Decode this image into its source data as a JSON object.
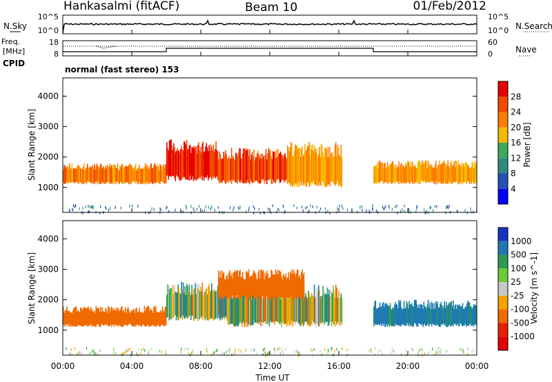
{
  "header": {
    "station": "Hankasalmi (fitACF)",
    "beam": "Beam 10",
    "date": "01/Feb/2012"
  },
  "top_panel": {
    "left_label": "N.Sky",
    "right_label": "N.Search",
    "left_ticks": [
      "10^5",
      "10^0"
    ],
    "right_ticks": [
      "10^5",
      "10^0"
    ]
  },
  "freq_panel": {
    "left_label_1": "Freq.",
    "left_label_2": "[MHz]",
    "left_ticks": [
      "18",
      "8"
    ],
    "right_ticks": [
      "60",
      "0"
    ],
    "right_label": "Nave"
  },
  "cpid": {
    "label": "CPID",
    "text": "normal (fast stereo) 153"
  },
  "x_axis": {
    "ticks": [
      "00:00",
      "04:00",
      "08:00",
      "12:00",
      "16:00",
      "20:00",
      "00:00"
    ],
    "label": "Time UT"
  },
  "colors": {
    "power": [
      "#0000ff",
      "#2550b4",
      "#2e8a7d",
      "#3aab5b",
      "#f6b800",
      "#ff7d00",
      "#f04b00",
      "#e80000"
    ],
    "velocity": [
      "#1633c4",
      "#1e7ab0",
      "#2a9a55",
      "#6cc93a",
      "#c8c8c8",
      "#f5a300",
      "#ef6a00",
      "#e62000",
      "#e80000"
    ]
  },
  "chart_data": [
    {
      "type": "heatmap",
      "title": "",
      "ylabel": "Slant Range [km]",
      "xlabel": "",
      "x_range": [
        "00:00",
        "24:00"
      ],
      "ylim": [
        180,
        4600
      ],
      "y_ticks": [
        1000,
        2000,
        3000,
        4000
      ],
      "x_ticks": [
        "00:00",
        "04:00",
        "08:00",
        "12:00",
        "16:00",
        "20:00",
        "00:00"
      ],
      "colorbar": {
        "label": "Power [dB]",
        "ticks": [
          "4",
          "8",
          "12",
          "16",
          "20",
          "24",
          "28"
        ]
      },
      "regions": [
        {
          "t_start_h": 0.0,
          "t_end_h": 6.0,
          "range_low_km": 1100,
          "range_high_km": 1800,
          "level": 22
        },
        {
          "t_start_h": 6.0,
          "t_end_h": 9.0,
          "range_low_km": 1200,
          "range_high_km": 2600,
          "level": 28
        },
        {
          "t_start_h": 9.0,
          "t_end_h": 13.0,
          "range_low_km": 1100,
          "range_high_km": 2300,
          "level": 26
        },
        {
          "t_start_h": 13.0,
          "t_end_h": 16.2,
          "range_low_km": 1000,
          "range_high_km": 2500,
          "level": 20
        },
        {
          "t_start_h": 18.0,
          "t_end_h": 24.0,
          "range_low_km": 1100,
          "range_high_km": 1900,
          "level": 20
        }
      ]
    },
    {
      "type": "heatmap",
      "title": "",
      "ylabel": "Slant Range [km]",
      "xlabel": "Time UT",
      "x_range": [
        "00:00",
        "24:00"
      ],
      "ylim": [
        180,
        4600
      ],
      "y_ticks": [
        1000,
        2000,
        3000,
        4000
      ],
      "x_ticks": [
        "00:00",
        "04:00",
        "08:00",
        "12:00",
        "16:00",
        "20:00",
        "00:00"
      ],
      "colorbar": {
        "label": "Velocity [m s^-1]",
        "ticks": [
          "1000",
          "500",
          "100",
          "25",
          "-25",
          "-100",
          "-500",
          "-1000"
        ]
      },
      "regions": [
        {
          "t_start_h": 0.0,
          "t_end_h": 6.0,
          "range_low_km": 1100,
          "range_high_km": 1800,
          "level": -300
        },
        {
          "t_start_h": 6.0,
          "t_end_h": 9.5,
          "range_low_km": 1300,
          "range_high_km": 2600,
          "level": 0
        },
        {
          "t_start_h": 9.5,
          "t_end_h": 16.2,
          "range_low_km": 1100,
          "range_high_km": 2500,
          "level": 0
        },
        {
          "t_start_h": 9.0,
          "t_end_h": 14.0,
          "range_low_km": 2000,
          "range_high_km": 3000,
          "level": -300
        },
        {
          "t_start_h": 18.0,
          "t_end_h": 24.0,
          "range_low_km": 1100,
          "range_high_km": 2000,
          "level": 200
        }
      ]
    }
  ]
}
